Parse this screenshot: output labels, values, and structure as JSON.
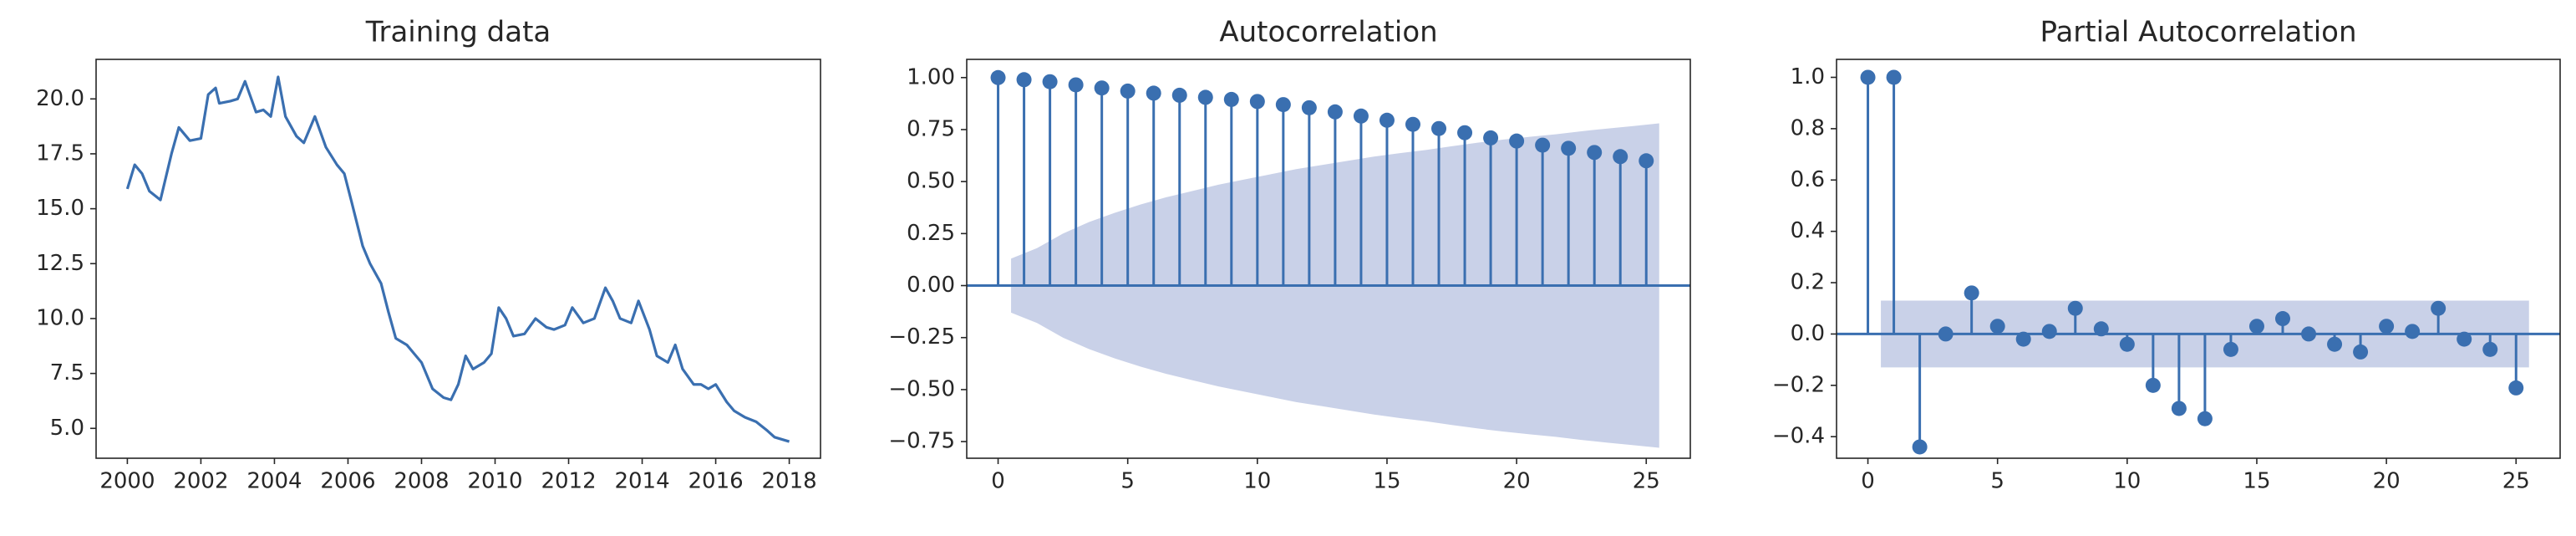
{
  "chart_data": [
    {
      "type": "line",
      "title": "Training data",
      "color": "#3a6fb0",
      "x": [
        2000,
        2000.2,
        2000.4,
        2000.6,
        2000.9,
        2001.2,
        2001.4,
        2001.7,
        2002.0,
        2002.2,
        2002.4,
        2002.5,
        2002.8,
        2003.0,
        2003.2,
        2003.5,
        2003.7,
        2003.9,
        2004.1,
        2004.3,
        2004.6,
        2004.8,
        2005.1,
        2005.4,
        2005.7,
        2005.9,
        2006.1,
        2006.4,
        2006.6,
        2006.9,
        2007.1,
        2007.3,
        2007.6,
        2007.8,
        2008.0,
        2008.3,
        2008.6,
        2008.8,
        2009.0,
        2009.2,
        2009.4,
        2009.7,
        2009.9,
        2010.1,
        2010.3,
        2010.5,
        2010.8,
        2011.1,
        2011.4,
        2011.6,
        2011.9,
        2012.1,
        2012.4,
        2012.7,
        2013.0,
        2013.2,
        2013.4,
        2013.7,
        2013.9,
        2014.2,
        2014.4,
        2014.7,
        2014.9,
        2015.1,
        2015.4,
        2015.6,
        2015.8,
        2016.0,
        2016.3,
        2016.5,
        2016.8,
        2017.1,
        2017.4,
        2017.6,
        2017.8,
        2018.0
      ],
      "y": [
        15.9,
        17.0,
        16.6,
        15.8,
        15.4,
        17.5,
        18.7,
        18.1,
        18.2,
        20.2,
        20.5,
        19.8,
        19.9,
        20.0,
        20.8,
        19.4,
        19.5,
        19.2,
        21.0,
        19.2,
        18.3,
        18.0,
        19.2,
        17.8,
        17.0,
        16.6,
        15.3,
        13.3,
        12.5,
        11.6,
        10.3,
        9.1,
        8.8,
        8.4,
        8.0,
        6.8,
        6.4,
        6.3,
        7.0,
        8.3,
        7.7,
        8.0,
        8.4,
        10.5,
        10.0,
        9.2,
        9.3,
        10.0,
        9.6,
        9.5,
        9.7,
        10.5,
        9.8,
        10.0,
        11.4,
        10.8,
        10.0,
        9.8,
        10.8,
        9.5,
        8.3,
        8.0,
        8.8,
        7.7,
        7.0,
        7.0,
        6.8,
        7.0,
        6.2,
        5.8,
        5.5,
        5.3,
        4.9,
        4.6,
        4.5,
        4.4
      ],
      "xlim": [
        1999.15,
        2018.85
      ],
      "xticks": [
        2000,
        2002,
        2004,
        2006,
        2008,
        2010,
        2012,
        2014,
        2016,
        2018
      ],
      "ylim": [
        3.64,
        21.8
      ],
      "yticks": [
        {
          "value": 5,
          "label": "5.0"
        },
        {
          "value": 7.5,
          "label": "7.5"
        },
        {
          "value": 10,
          "label": "10.0"
        },
        {
          "value": 12.5,
          "label": "12.5"
        },
        {
          "value": 15,
          "label": "15.0"
        },
        {
          "value": 17.5,
          "label": "17.5"
        },
        {
          "value": 20,
          "label": "20.0"
        }
      ]
    },
    {
      "type": "stem",
      "title": "Autocorrelation",
      "color": "#3a6fb0",
      "band_color": "#c9d1e8",
      "x": [
        0,
        1,
        2,
        3,
        4,
        5,
        6,
        7,
        8,
        9,
        10,
        11,
        12,
        13,
        14,
        15,
        16,
        17,
        18,
        19,
        20,
        21,
        22,
        23,
        24,
        25
      ],
      "values": [
        1.0,
        0.99,
        0.98,
        0.965,
        0.95,
        0.935,
        0.925,
        0.915,
        0.905,
        0.895,
        0.885,
        0.87,
        0.855,
        0.835,
        0.815,
        0.795,
        0.775,
        0.755,
        0.735,
        0.71,
        0.695,
        0.675,
        0.66,
        0.64,
        0.62,
        0.6
      ],
      "confidence_band": {
        "x": [
          0.5,
          1.5,
          2.5,
          3.5,
          4.5,
          5.5,
          6.5,
          7.5,
          8.5,
          9.5,
          10.5,
          11.5,
          12.5,
          13.5,
          14.5,
          15.5,
          16.5,
          17.5,
          18.5,
          19.5,
          20.5,
          21.5,
          22.5,
          23.5,
          24.5,
          25.5
        ],
        "upper": [
          0.13,
          0.18,
          0.25,
          0.305,
          0.35,
          0.39,
          0.425,
          0.455,
          0.485,
          0.51,
          0.535,
          0.56,
          0.58,
          0.6,
          0.62,
          0.637,
          0.652,
          0.67,
          0.687,
          0.702,
          0.715,
          0.727,
          0.742,
          0.755,
          0.767,
          0.78
        ],
        "lower": [
          -0.13,
          -0.18,
          -0.25,
          -0.305,
          -0.35,
          -0.39,
          -0.425,
          -0.455,
          -0.485,
          -0.51,
          -0.535,
          -0.56,
          -0.58,
          -0.6,
          -0.62,
          -0.637,
          -0.652,
          -0.67,
          -0.687,
          -0.702,
          -0.715,
          -0.727,
          -0.742,
          -0.755,
          -0.767,
          -0.78
        ]
      },
      "xlim": [
        -1.21,
        26.7
      ],
      "xticks": [
        0,
        5,
        10,
        15,
        20,
        25
      ],
      "ylim": [
        -0.83,
        1.0875
      ],
      "yticks": [
        {
          "value": -0.75,
          "label": "−0.75"
        },
        {
          "value": -0.5,
          "label": "−0.50"
        },
        {
          "value": -0.25,
          "label": "−0.25"
        },
        {
          "value": 0,
          "label": "0.00"
        },
        {
          "value": 0.25,
          "label": "0.25"
        },
        {
          "value": 0.5,
          "label": "0.50"
        },
        {
          "value": 0.75,
          "label": "0.75"
        },
        {
          "value": 1,
          "label": "1.00"
        }
      ]
    },
    {
      "type": "stem",
      "title": "Partial Autocorrelation",
      "color": "#3a6fb0",
      "band_color": "#c9d1e8",
      "x": [
        0,
        1,
        2,
        3,
        4,
        5,
        6,
        7,
        8,
        9,
        10,
        11,
        12,
        13,
        14,
        15,
        16,
        17,
        18,
        19,
        20,
        21,
        22,
        23,
        24,
        25
      ],
      "values": [
        1.0,
        1.0,
        -0.44,
        0.0,
        0.16,
        0.03,
        -0.02,
        0.01,
        0.1,
        0.02,
        -0.04,
        -0.2,
        -0.29,
        -0.33,
        -0.06,
        0.03,
        0.06,
        0.0,
        -0.04,
        -0.07,
        0.03,
        0.01,
        0.1,
        -0.02,
        -0.06,
        -0.21
      ],
      "confidence_band": {
        "x": [
          0.5,
          25.5
        ],
        "upper": [
          0.13,
          0.13
        ],
        "lower": [
          -0.13,
          -0.13
        ]
      },
      "xlim": [
        -1.21,
        26.7
      ],
      "xticks": [
        0,
        5,
        10,
        15,
        20,
        25
      ],
      "ylim": [
        -0.484,
        1.07
      ],
      "yticks": [
        {
          "value": -0.4,
          "label": "−0.4"
        },
        {
          "value": -0.2,
          "label": "−0.2"
        },
        {
          "value": 0,
          "label": "0.0"
        },
        {
          "value": 0.2,
          "label": "0.2"
        },
        {
          "value": 0.4,
          "label": "0.4"
        },
        {
          "value": 0.6,
          "label": "0.6"
        },
        {
          "value": 0.8,
          "label": "0.8"
        },
        {
          "value": 1,
          "label": "1.0"
        }
      ]
    }
  ]
}
